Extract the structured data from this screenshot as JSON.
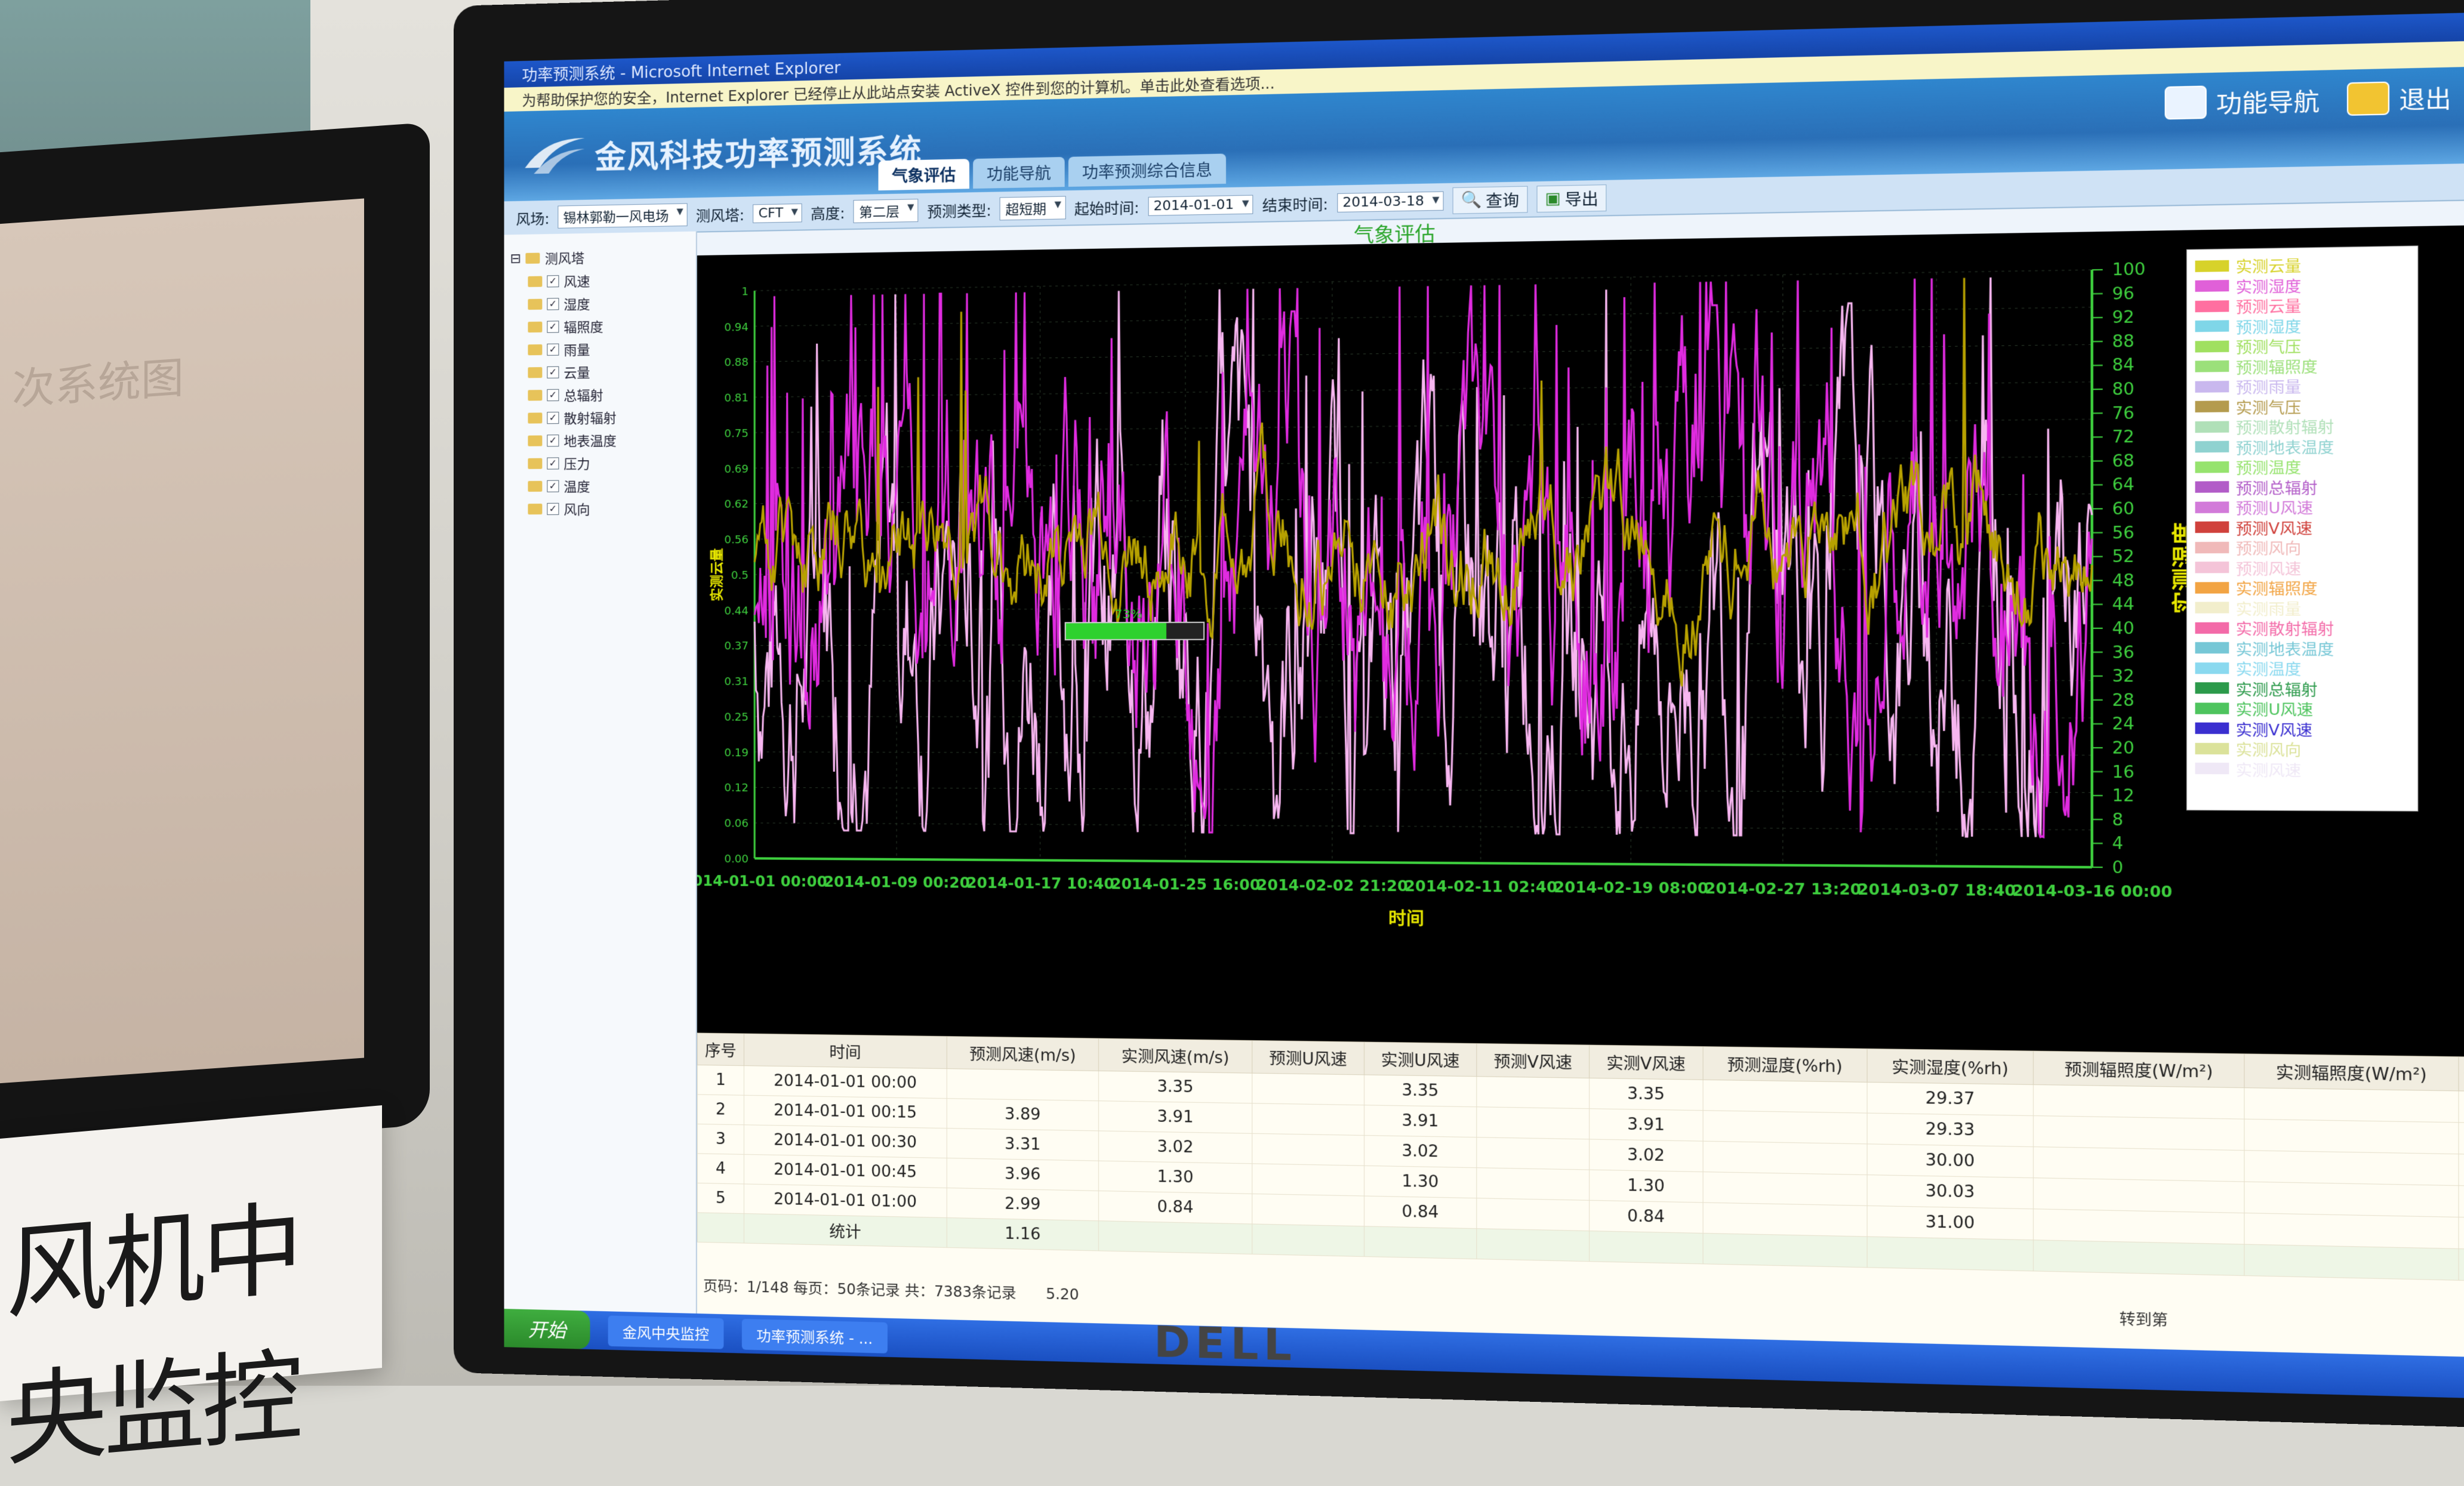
{
  "ie": {
    "title": "功率预测系统 - Microsoft Internet Explorer",
    "info_bar": "为帮助保护您的安全，Internet Explorer 已经停止从此站点安装 ActiveX 控件到您的计算机。单击此处查看选项..."
  },
  "app": {
    "title": "金风科技功率预测系统",
    "nav_label": "功能导航",
    "exit_label": "退出"
  },
  "tabs": [
    {
      "label": "气象评估"
    },
    {
      "label": "功能导航"
    },
    {
      "label": "功率预测综合信息"
    }
  ],
  "filters": {
    "wind_farm_label": "风场:",
    "wind_farm_value": "锡林郭勒一风电场",
    "tower_label": "测风塔:",
    "tower_value": "CFT",
    "height_label": "高度:",
    "height_value": "第二层",
    "forecast_type_label": "预测类型:",
    "forecast_type_value": "超短期",
    "start_label": "起始时间:",
    "start_value": "2014-01-01",
    "end_label": "结束时间:",
    "end_value": "2014-03-18",
    "query_label": "查询",
    "export_label": "导出"
  },
  "tree": {
    "root": "测风塔",
    "items": [
      "风速",
      "湿度",
      "辐照度",
      "雨量",
      "云量",
      "总辐射",
      "散射辐射",
      "地表温度",
      "压力",
      "温度",
      "风向"
    ]
  },
  "chart_data": {
    "type": "line",
    "title": "气象评估",
    "xlabel": "时间",
    "ylabel_left": "实测云量",
    "ylabel_right": "实测湿度",
    "y_left_ticks": [
      "0.00",
      "0.06",
      "0.12",
      "0.19",
      "0.25",
      "0.31",
      "0.37",
      "0.44",
      "0.5",
      "0.56",
      "0.62",
      "0.69",
      "0.75",
      "0.81",
      "0.88",
      "0.94",
      "1"
    ],
    "y_right_ticks": [
      "0",
      "4",
      "8",
      "12",
      "16",
      "20",
      "24",
      "28",
      "32",
      "36",
      "40",
      "44",
      "48",
      "52",
      "56",
      "60",
      "64",
      "68",
      "72",
      "76",
      "80",
      "84",
      "88",
      "92",
      "96",
      "100"
    ],
    "x_ticks": [
      "2014-01-01 00:00",
      "2014-01-09 00:20",
      "2014-01-17 10:40",
      "2014-01-25 16:00",
      "2014-02-02 21:20",
      "2014-02-11 02:40",
      "2014-02-19 08:00",
      "2014-02-27 13:20",
      "2014-03-07 18:40",
      "2014-03-16 00:00"
    ],
    "series": [
      {
        "name": "实测湿度",
        "color": "#e02be0"
      },
      {
        "name": "实测风速",
        "color": "#f7b6f0"
      },
      {
        "name": "实测云量",
        "color": "#b7a100"
      }
    ],
    "progress_label": "73%",
    "progress": 0.73
  },
  "legend": [
    {
      "label": "实测云量",
      "color": "#d7d22a"
    },
    {
      "label": "实测湿度",
      "color": "#e060d8"
    },
    {
      "label": "预测云量",
      "color": "#ff6fa0"
    },
    {
      "label": "预测湿度",
      "color": "#7fd6e8"
    },
    {
      "label": "预测气压",
      "color": "#a0e060"
    },
    {
      "label": "预测辐照度",
      "color": "#9be07a"
    },
    {
      "label": "预测雨量",
      "color": "#c9b8ee"
    },
    {
      "label": "实测气压",
      "color": "#b49b4e"
    },
    {
      "label": "预测散射辐射",
      "color": "#b0e0b8"
    },
    {
      "label": "预测地表温度",
      "color": "#8fd2d0"
    },
    {
      "label": "预测温度",
      "color": "#96e36e"
    },
    {
      "label": "预测总辐射",
      "color": "#b25cc8"
    },
    {
      "label": "预测U风速",
      "color": "#d27ad9"
    },
    {
      "label": "预测V风速",
      "color": "#d0413c"
    },
    {
      "label": "预测风向",
      "color": "#f0b9b9"
    },
    {
      "label": "预测风速",
      "color": "#f4c4d8"
    },
    {
      "label": "实测辐照度",
      "color": "#f2a443"
    },
    {
      "label": "实测雨量",
      "color": "#f2eecc"
    },
    {
      "label": "实测散射辐射",
      "color": "#f36aa8"
    },
    {
      "label": "实测地表温度",
      "color": "#76c7d6"
    },
    {
      "label": "实测温度",
      "color": "#8ad9ef"
    },
    {
      "label": "实测总辐射",
      "color": "#2c9a4b"
    },
    {
      "label": "实测U风速",
      "color": "#4ec45e"
    },
    {
      "label": "实测V风速",
      "color": "#3a2fd0"
    },
    {
      "label": "实测风向",
      "color": "#dbe29a"
    },
    {
      "label": "实测风速",
      "color": "#efe8f6"
    }
  ],
  "table": {
    "headers": [
      "序号",
      "时间",
      "预测风速(m/s)",
      "实测风速(m/s)",
      "预测U风速",
      "实测U风速",
      "预测V风速",
      "实测V风速",
      "预测湿度(%rh)",
      "实测湿度(%rh)",
      "预测辐照度(W/m²)",
      "实测辐照度(W/m²)",
      "预"
    ],
    "rows": [
      {
        "n": "1",
        "time": "2014-01-01 00:00",
        "v": [
          "",
          "3.35",
          "",
          "3.35",
          "",
          "3.35",
          "",
          "29.37",
          "",
          ""
        ]
      },
      {
        "n": "2",
        "time": "2014-01-01 00:15",
        "v": [
          "3.89",
          "3.91",
          "",
          "3.91",
          "",
          "3.91",
          "",
          "29.33",
          "",
          ""
        ]
      },
      {
        "n": "3",
        "time": "2014-01-01 00:30",
        "v": [
          "3.31",
          "3.02",
          "",
          "3.02",
          "",
          "3.02",
          "",
          "30.00",
          "",
          ""
        ]
      },
      {
        "n": "4",
        "time": "2014-01-01 00:45",
        "v": [
          "3.96",
          "1.30",
          "",
          "1.30",
          "",
          "1.30",
          "",
          "30.03",
          "",
          ""
        ]
      },
      {
        "n": "5",
        "time": "2014-01-01 01:00",
        "v": [
          "2.99",
          "0.84",
          "",
          "0.84",
          "",
          "0.84",
          "",
          "31.00",
          "",
          ""
        ]
      }
    ],
    "stats_label": "统计",
    "stats": [
      "1.16",
      "",
      "",
      "",
      "",
      "",
      "",
      "",
      "",
      ""
    ],
    "stats2": "5.20",
    "pager": "页码：1/148 每页：50条记录  共：7383条记录",
    "goto": "转到第"
  },
  "taskbar": {
    "start": "开始",
    "tasks": [
      "金风中央监控",
      "功率预测系统 - ..."
    ]
  },
  "sign": {
    "text": "风机中央监控"
  },
  "bezel": {
    "brand": "DELL"
  },
  "left_screen": {
    "title": "次系统图"
  }
}
